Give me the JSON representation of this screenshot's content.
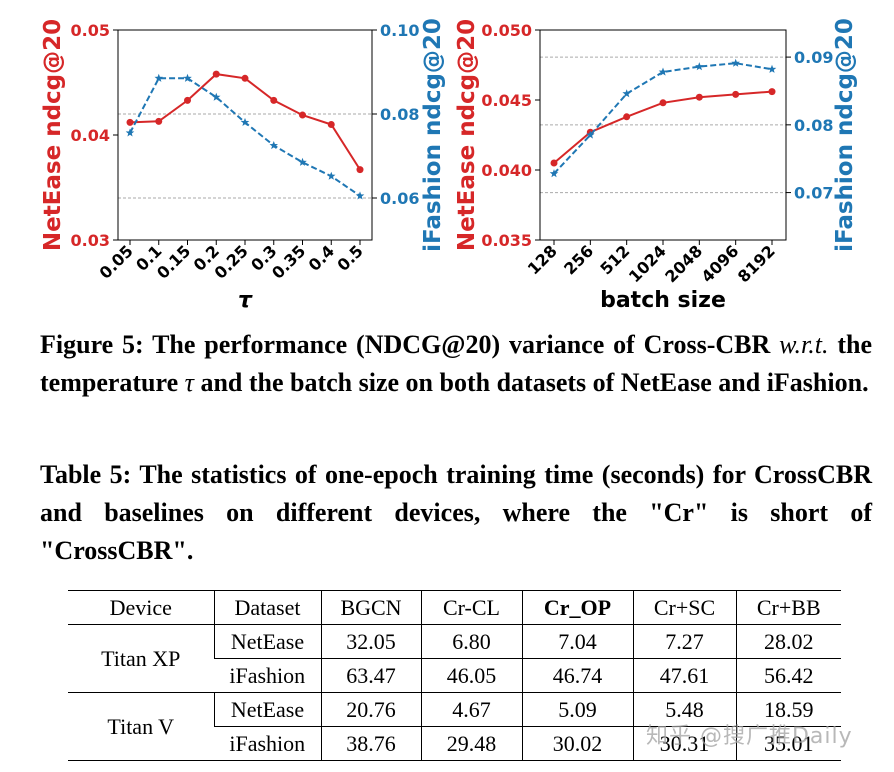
{
  "chart_data": [
    {
      "type": "line",
      "x_categories": [
        "0.05",
        "0.1",
        "0.15",
        "0.2",
        "0.25",
        "0.3",
        "0.35",
        "0.4",
        "0.5"
      ],
      "xlabel": "τ",
      "left_ylabel": "NetEase ndcg@20",
      "right_ylabel": "iFashion ndcg@20",
      "left_ylim": [
        0.03,
        0.05
      ],
      "right_ylim": [
        0.05,
        0.1
      ],
      "left_ticks": [
        "0.03",
        "0.04",
        "0.05"
      ],
      "right_ticks": [
        "0.06",
        "0.08",
        "0.10"
      ],
      "left_tick_values": [
        0.03,
        0.04,
        0.05
      ],
      "right_tick_values": [
        0.06,
        0.08,
        0.1
      ],
      "series": [
        {
          "name": "NetEase",
          "axis": "left",
          "color": "#d62728",
          "marker": "circle",
          "values": [
            0.0412,
            0.0413,
            0.0433,
            0.0458,
            0.0454,
            0.0433,
            0.0419,
            0.041,
            0.0367
          ]
        },
        {
          "name": "iFashion",
          "axis": "right",
          "color": "#1f77b4",
          "marker": "star",
          "dashed": true,
          "values": [
            0.0755,
            0.0885,
            0.0885,
            0.084,
            0.078,
            0.0725,
            0.0685,
            0.0652,
            0.0605
          ]
        }
      ],
      "grid_right_values": [
        0.06,
        0.08
      ]
    },
    {
      "type": "line",
      "x_categories": [
        "128",
        "256",
        "512",
        "1024",
        "2048",
        "4096",
        "8192"
      ],
      "xlabel": "batch size",
      "left_ylabel": "NetEase ndcg@20",
      "right_ylabel": "iFashion ndcg@20",
      "left_ylim": [
        0.035,
        0.05
      ],
      "right_ylim": [
        0.063,
        0.094
      ],
      "left_ticks": [
        "0.035",
        "0.040",
        "0.045",
        "0.050"
      ],
      "right_ticks": [
        "0.07",
        "0.08",
        "0.09"
      ],
      "left_tick_values": [
        0.035,
        0.04,
        0.045,
        0.05
      ],
      "right_tick_values": [
        0.07,
        0.08,
        0.09
      ],
      "series": [
        {
          "name": "NetEase",
          "axis": "left",
          "color": "#d62728",
          "marker": "circle",
          "values": [
            0.0405,
            0.0427,
            0.0438,
            0.0448,
            0.0452,
            0.0454,
            0.0456
          ]
        },
        {
          "name": "iFashion",
          "axis": "right",
          "color": "#1f77b4",
          "marker": "star",
          "dashed": true,
          "values": [
            0.0728,
            0.0785,
            0.0846,
            0.0878,
            0.0886,
            0.0891,
            0.0882
          ]
        }
      ],
      "grid_right_values": [
        0.07,
        0.08,
        0.09
      ]
    }
  ],
  "figure_caption": {
    "label": "Figure 5:",
    "part1": "The performance (NDCG@20) variance of Cross-CBR",
    "wrt": "w.r.t.",
    "part2": "the temperature",
    "tau": "τ",
    "part3": "and the batch size on both datasets of NetEase and iFashion."
  },
  "table_caption": "Table 5: The statistics of one-epoch training time (seconds) for CrossCBR and baselines on different devices, where the \"Cr\" is short of \"CrossCBR\".",
  "table": {
    "headers": [
      "Device",
      "Dataset",
      "BGCN",
      "Cr-CL",
      "Cr_OP",
      "Cr+SC",
      "Cr+BB"
    ],
    "groups": [
      {
        "device": "Titan XP",
        "rows": [
          {
            "dataset": "NetEase",
            "values": [
              "32.05",
              "6.80",
              "7.04",
              "7.27",
              "28.02"
            ]
          },
          {
            "dataset": "iFashion",
            "values": [
              "63.47",
              "46.05",
              "46.74",
              "47.61",
              "56.42"
            ]
          }
        ]
      },
      {
        "device": "Titan V",
        "rows": [
          {
            "dataset": "NetEase",
            "values": [
              "20.76",
              "4.67",
              "5.09",
              "5.48",
              "18.59"
            ]
          },
          {
            "dataset": "iFashion",
            "values": [
              "38.76",
              "29.48",
              "30.02",
              "30.31",
              "35.01"
            ]
          }
        ]
      }
    ]
  },
  "watermark": "知乎 @搜广推Daily"
}
